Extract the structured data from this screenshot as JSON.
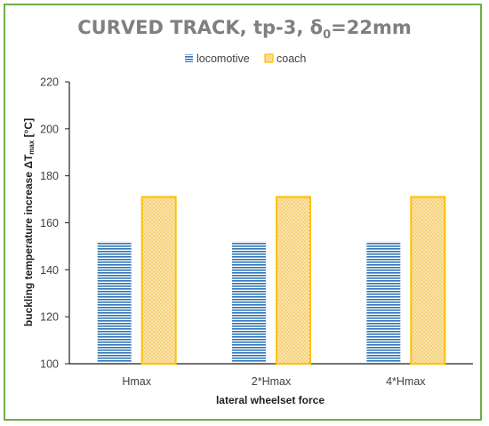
{
  "chart_data": {
    "type": "bar",
    "title": "CURVED TRACK, tp-3, δ0=22mm",
    "title_parts": {
      "main": "CURVED TRACK, tp-3, δ",
      "subscript": "0",
      "tail": "=22mm"
    },
    "categories": [
      "Hmax",
      "2*Hmax",
      "4*Hmax"
    ],
    "series": [
      {
        "name": "locomotive",
        "values": [
          152,
          152,
          152
        ],
        "color": "#2e75b6",
        "pattern": "horizontal-stripes"
      },
      {
        "name": "coach",
        "values": [
          171,
          171,
          171
        ],
        "color": "#ffc000",
        "pattern": "dots"
      }
    ],
    "xlabel": "lateral wheelset force",
    "ylabel": "buckling temperature increase  ΔTmax [°C]",
    "ylabel_parts": {
      "main": "buckling temperature increase  ΔT",
      "subscript": "max",
      "tail": " [°C]"
    },
    "ylim": [
      100,
      220
    ],
    "yticks": [
      100,
      120,
      140,
      160,
      180,
      200,
      220
    ],
    "legend_position": "top",
    "grid": false
  }
}
